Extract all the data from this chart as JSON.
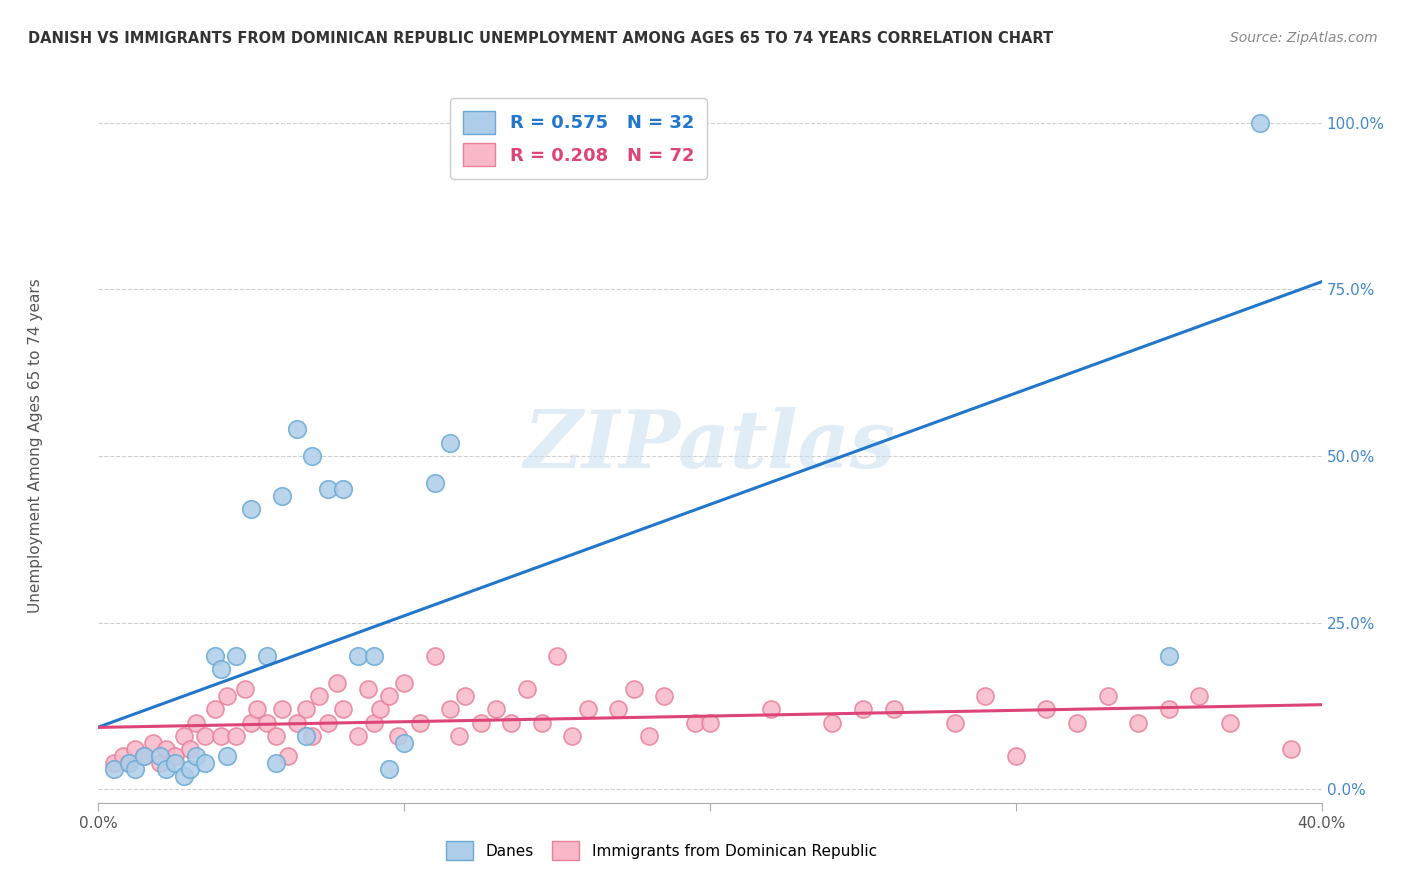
{
  "title": "DANISH VS IMMIGRANTS FROM DOMINICAN REPUBLIC UNEMPLOYMENT AMONG AGES 65 TO 74 YEARS CORRELATION CHART",
  "source": "Source: ZipAtlas.com",
  "ylabel": "Unemployment Among Ages 65 to 74 years",
  "xlim": [
    0.0,
    0.4
  ],
  "ylim": [
    -0.02,
    1.05
  ],
  "danes_color": "#aecde8",
  "danes_edge_color": "#6aaad4",
  "immig_color": "#f9b8c8",
  "immig_edge_color": "#e8809a",
  "trend_blue": "#2277cc",
  "trend_pink": "#dd4477",
  "danes_R": 0.575,
  "danes_N": 32,
  "immig_R": 0.208,
  "immig_N": 72,
  "legend_label_danes": "Danes",
  "legend_label_immig": "Immigrants from Dominican Republic",
  "watermark": "ZIPatlas",
  "danes_x": [
    0.005,
    0.01,
    0.012,
    0.015,
    0.02,
    0.022,
    0.025,
    0.028,
    0.03,
    0.032,
    0.035,
    0.038,
    0.04,
    0.042,
    0.045,
    0.05,
    0.055,
    0.058,
    0.06,
    0.065,
    0.068,
    0.07,
    0.075,
    0.08,
    0.085,
    0.09,
    0.095,
    0.1,
    0.11,
    0.115,
    0.35,
    0.38
  ],
  "danes_y": [
    0.03,
    0.04,
    0.03,
    0.05,
    0.05,
    0.03,
    0.04,
    0.02,
    0.03,
    0.05,
    0.04,
    0.2,
    0.18,
    0.05,
    0.2,
    0.42,
    0.2,
    0.04,
    0.44,
    0.54,
    0.08,
    0.5,
    0.45,
    0.45,
    0.2,
    0.2,
    0.03,
    0.07,
    0.46,
    0.52,
    0.2,
    1.0
  ],
  "immig_x": [
    0.005,
    0.008,
    0.01,
    0.012,
    0.015,
    0.018,
    0.02,
    0.022,
    0.025,
    0.028,
    0.03,
    0.032,
    0.035,
    0.038,
    0.04,
    0.042,
    0.045,
    0.048,
    0.05,
    0.052,
    0.055,
    0.058,
    0.06,
    0.062,
    0.065,
    0.068,
    0.07,
    0.072,
    0.075,
    0.078,
    0.08,
    0.085,
    0.088,
    0.09,
    0.092,
    0.095,
    0.098,
    0.1,
    0.105,
    0.11,
    0.115,
    0.118,
    0.12,
    0.125,
    0.13,
    0.135,
    0.14,
    0.145,
    0.15,
    0.155,
    0.16,
    0.17,
    0.175,
    0.18,
    0.185,
    0.195,
    0.2,
    0.22,
    0.24,
    0.25,
    0.26,
    0.28,
    0.29,
    0.3,
    0.31,
    0.32,
    0.33,
    0.34,
    0.35,
    0.36,
    0.37,
    0.39
  ],
  "immig_y": [
    0.04,
    0.05,
    0.04,
    0.06,
    0.05,
    0.07,
    0.04,
    0.06,
    0.05,
    0.08,
    0.06,
    0.1,
    0.08,
    0.12,
    0.08,
    0.14,
    0.08,
    0.15,
    0.1,
    0.12,
    0.1,
    0.08,
    0.12,
    0.05,
    0.1,
    0.12,
    0.08,
    0.14,
    0.1,
    0.16,
    0.12,
    0.08,
    0.15,
    0.1,
    0.12,
    0.14,
    0.08,
    0.16,
    0.1,
    0.2,
    0.12,
    0.08,
    0.14,
    0.1,
    0.12,
    0.1,
    0.15,
    0.1,
    0.2,
    0.08,
    0.12,
    0.12,
    0.15,
    0.08,
    0.14,
    0.1,
    0.1,
    0.12,
    0.1,
    0.12,
    0.12,
    0.1,
    0.14,
    0.05,
    0.12,
    0.1,
    0.14,
    0.1,
    0.12,
    0.14,
    0.1,
    0.06
  ]
}
